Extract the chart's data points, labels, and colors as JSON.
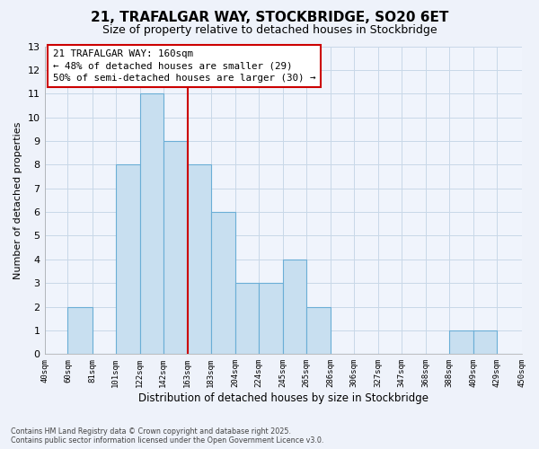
{
  "title": "21, TRAFALGAR WAY, STOCKBRIDGE, SO20 6ET",
  "subtitle": "Size of property relative to detached houses in Stockbridge",
  "xlabel": "Distribution of detached houses by size in Stockbridge",
  "ylabel": "Number of detached properties",
  "bar_color": "#c8dff0",
  "bar_edge_color": "#6baed6",
  "grid_color": "#c8d8e8",
  "background_color": "#eef2fa",
  "plot_bg_color": "#f0f4fc",
  "bins": [
    40,
    60,
    81,
    101,
    122,
    142,
    163,
    183,
    204,
    224,
    245,
    265,
    286,
    306,
    327,
    347,
    368,
    388,
    409,
    429,
    450
  ],
  "counts": [
    0,
    2,
    0,
    8,
    11,
    9,
    8,
    6,
    3,
    3,
    4,
    2,
    0,
    0,
    0,
    0,
    0,
    1,
    1,
    0
  ],
  "ylim": [
    0,
    13
  ],
  "yticks": [
    0,
    1,
    2,
    3,
    4,
    5,
    6,
    7,
    8,
    9,
    10,
    11,
    12,
    13
  ],
  "property_line_x": 163,
  "property_line_color": "#cc0000",
  "annotation_title": "21 TRAFALGAR WAY: 160sqm",
  "annotation_line1": "← 48% of detached houses are smaller (29)",
  "annotation_line2": "50% of semi-detached houses are larger (30) →",
  "footer_line1": "Contains HM Land Registry data © Crown copyright and database right 2025.",
  "footer_line2": "Contains public sector information licensed under the Open Government Licence v3.0.",
  "tick_labels": [
    "40sqm",
    "60sqm",
    "81sqm",
    "101sqm",
    "122sqm",
    "142sqm",
    "163sqm",
    "183sqm",
    "204sqm",
    "224sqm",
    "245sqm",
    "265sqm",
    "286sqm",
    "306sqm",
    "327sqm",
    "347sqm",
    "368sqm",
    "388sqm",
    "409sqm",
    "429sqm",
    "450sqm"
  ]
}
